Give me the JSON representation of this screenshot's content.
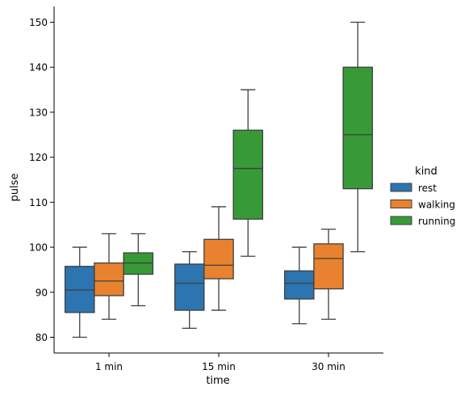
{
  "chart_data": {
    "type": "box",
    "title": "",
    "xlabel": "time",
    "ylabel": "pulse",
    "categories": [
      "1 min",
      "15 min",
      "30 min"
    ],
    "ylim": [
      76.5,
      153.5
    ],
    "yticks": [
      80,
      90,
      100,
      110,
      120,
      130,
      140,
      150
    ],
    "grid": false,
    "legend": {
      "title": "kind",
      "placement": "right"
    },
    "series": [
      {
        "name": "rest",
        "color": "#2c75b0",
        "boxes": [
          {
            "min": 80,
            "q1": 85.5,
            "median": 90.5,
            "q3": 95.75,
            "max": 100
          },
          {
            "min": 82,
            "q1": 86,
            "median": 92,
            "q3": 96.25,
            "max": 99
          },
          {
            "min": 83,
            "q1": 88.5,
            "median": 92,
            "q3": 94.75,
            "max": 100
          }
        ]
      },
      {
        "name": "walking",
        "color": "#e8822e",
        "boxes": [
          {
            "min": 84,
            "q1": 89.25,
            "median": 92.5,
            "q3": 96.5,
            "max": 103
          },
          {
            "min": 86,
            "q1": 93,
            "median": 96,
            "q3": 101.75,
            "max": 109
          },
          {
            "min": 84,
            "q1": 90.75,
            "median": 97.5,
            "q3": 100.75,
            "max": 104
          }
        ]
      },
      {
        "name": "running",
        "color": "#379a37",
        "boxes": [
          {
            "min": 87,
            "q1": 94,
            "median": 96.5,
            "q3": 98.75,
            "max": 103
          },
          {
            "min": 98,
            "q1": 106.25,
            "median": 117.5,
            "q3": 126,
            "max": 135
          },
          {
            "min": 99,
            "q1": 113,
            "median": 125,
            "q3": 140,
            "max": 150
          }
        ]
      }
    ]
  }
}
